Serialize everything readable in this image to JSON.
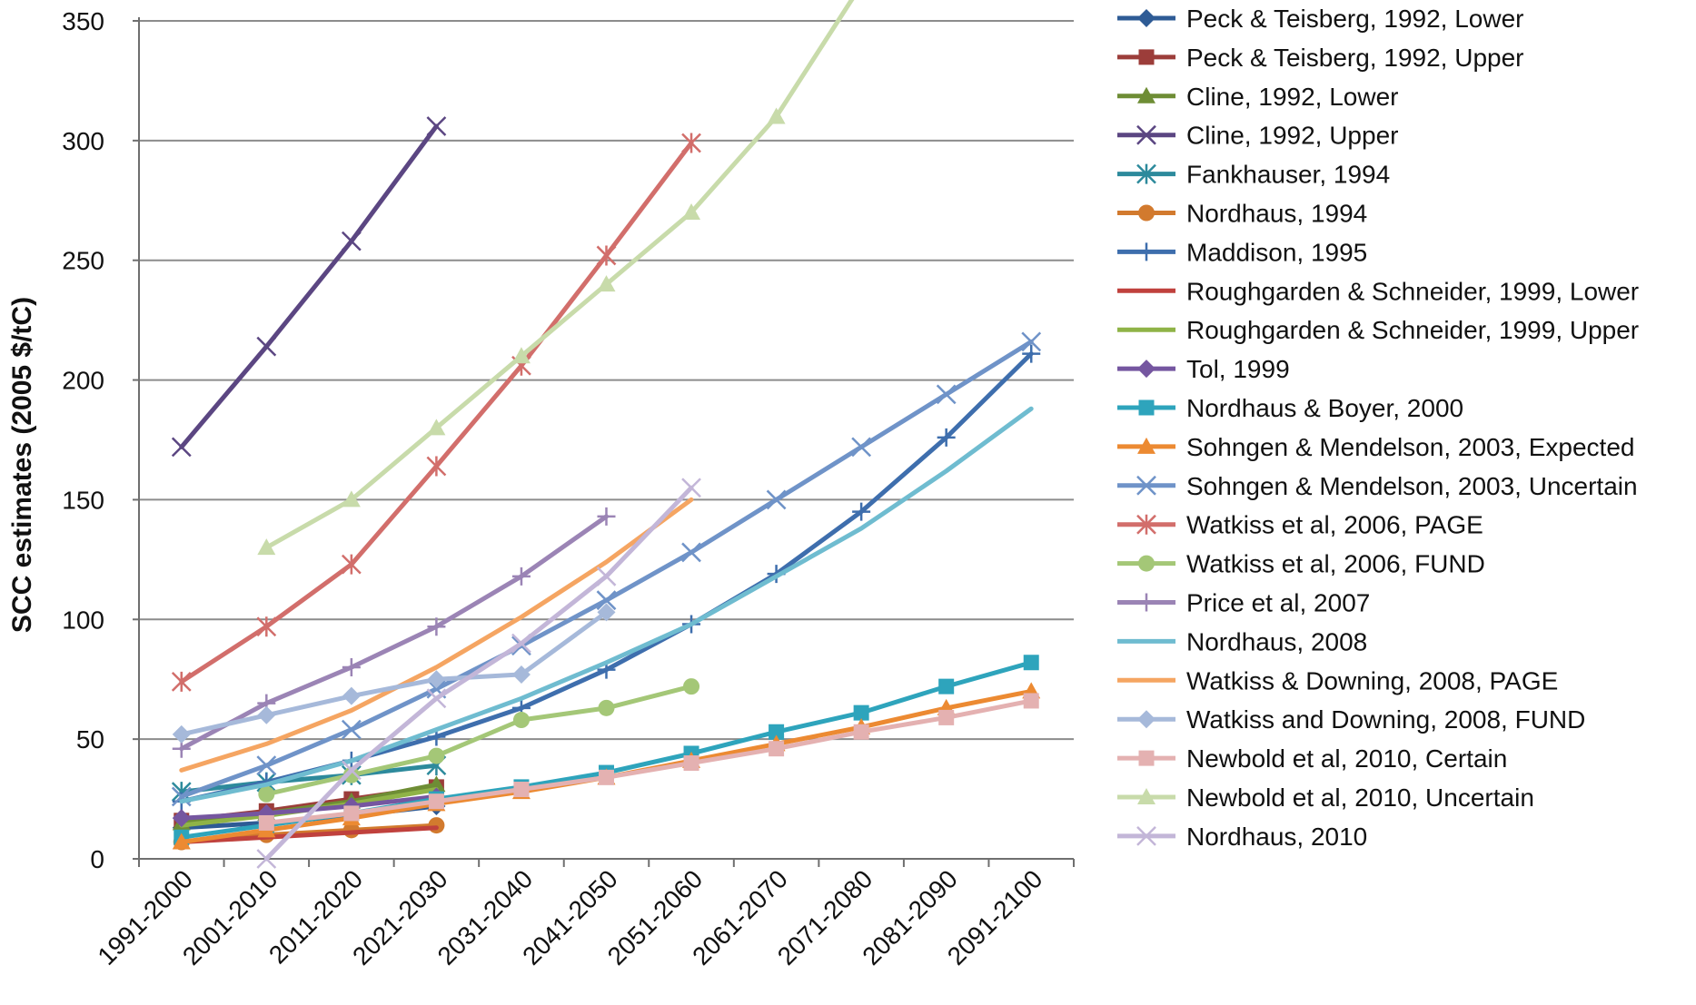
{
  "chart_data": {
    "type": "line",
    "title": "",
    "xlabel": "",
    "ylabel": "SCC estimates (2005 $/tC)",
    "ylim": [
      0,
      350
    ],
    "yticks": [
      0,
      50,
      100,
      150,
      200,
      250,
      300,
      350
    ],
    "grid": true,
    "legend_position": "right",
    "categories": [
      "1991-2000",
      "2001-2010",
      "2011-2020",
      "2021-2030",
      "2031-2040",
      "2041-2050",
      "2051-2060",
      "2061-2070",
      "2071-2080",
      "2081-2090",
      "2091-2100"
    ],
    "series": [
      {
        "name": "Peck & Teisberg, 1992, Lower",
        "color": "#2e5b95",
        "marker": "diamond",
        "values": [
          13,
          15,
          18,
          22,
          null,
          null,
          null,
          null,
          null,
          null,
          null
        ]
      },
      {
        "name": "Peck & Teisberg, 1992, Upper",
        "color": "#9c3d3a",
        "marker": "square",
        "values": [
          16,
          20,
          25,
          30,
          null,
          null,
          null,
          null,
          null,
          null,
          null
        ]
      },
      {
        "name": "Cline, 1992, Lower",
        "color": "#6e8d35",
        "marker": "triangle",
        "values": [
          15,
          19,
          24,
          31,
          null,
          null,
          null,
          null,
          null,
          null,
          null
        ]
      },
      {
        "name": "Cline, 1992, Upper",
        "color": "#5b4682",
        "marker": "x",
        "values": [
          172,
          214,
          258,
          306,
          null,
          null,
          null,
          null,
          null,
          null,
          null
        ]
      },
      {
        "name": "Fankhauser, 1994",
        "color": "#2d8a9c",
        "marker": "star",
        "values": [
          28,
          32,
          35,
          39,
          null,
          null,
          null,
          null,
          null,
          null,
          null
        ]
      },
      {
        "name": "Nordhaus, 1994",
        "color": "#d27a2e",
        "marker": "circle",
        "values": [
          7,
          10,
          12,
          14,
          null,
          null,
          null,
          null,
          null,
          null,
          null
        ]
      },
      {
        "name": "Maddison, 1995",
        "color": "#3e6ead",
        "marker": "plus",
        "values": [
          24,
          32,
          41,
          51,
          63,
          79,
          98,
          119,
          145,
          176,
          211
        ]
      },
      {
        "name": "Roughgarden & Schneider, 1999, Lower",
        "color": "#c0413d",
        "marker": "none",
        "values": [
          7,
          9,
          11,
          13,
          null,
          null,
          null,
          null,
          null,
          null,
          null
        ]
      },
      {
        "name": "Roughgarden & Schneider, 1999, Upper",
        "color": "#8fb347",
        "marker": "none",
        "values": [
          14,
          18,
          23,
          29,
          null,
          null,
          null,
          null,
          null,
          null,
          null
        ]
      },
      {
        "name": "Tol, 1999",
        "color": "#7556a0",
        "marker": "diamond",
        "values": [
          17,
          19,
          22,
          26,
          null,
          null,
          null,
          null,
          null,
          null,
          null
        ]
      },
      {
        "name": "Nordhaus & Boyer, 2000",
        "color": "#2ea4bc",
        "marker": "square",
        "values": [
          9,
          14,
          19,
          25,
          30,
          36,
          44,
          53,
          61,
          72,
          82
        ]
      },
      {
        "name": "Sohngen & Mendelson, 2003, Expected",
        "color": "#ec8a32",
        "marker": "triangle",
        "values": [
          7,
          12,
          17,
          23,
          28,
          34,
          41,
          48,
          55,
          63,
          70
        ]
      },
      {
        "name": "Sohngen & Mendelson, 2003, Uncertain",
        "color": "#6f93c8",
        "marker": "x",
        "values": [
          26,
          39,
          54,
          71,
          89,
          108,
          128,
          150,
          172,
          194,
          216
        ]
      },
      {
        "name": "Watkiss et al, 2006, PAGE",
        "color": "#d26e6b",
        "marker": "star",
        "values": [
          74,
          97,
          123,
          164,
          206,
          252,
          299,
          null,
          null,
          null,
          null
        ]
      },
      {
        "name": "Watkiss et al, 2006, FUND",
        "color": "#a4c777",
        "marker": "circle",
        "values": [
          null,
          27,
          35,
          43,
          58,
          63,
          72,
          null,
          null,
          null,
          null
        ]
      },
      {
        "name": "Price et al, 2007",
        "color": "#9b84b5",
        "marker": "plus",
        "values": [
          46,
          65,
          80,
          97,
          118,
          143,
          null,
          null,
          null,
          null,
          null
        ]
      },
      {
        "name": "Nordhaus, 2008",
        "color": "#6fbcd0",
        "marker": "none",
        "values": [
          24,
          31,
          41,
          54,
          67,
          82,
          98,
          118,
          138,
          162,
          188
        ]
      },
      {
        "name": "Watkiss & Downing,  2008, PAGE",
        "color": "#f5a562",
        "marker": "none",
        "values": [
          37,
          48,
          62,
          80,
          101,
          124,
          150,
          null,
          null,
          null,
          null
        ]
      },
      {
        "name": "Watkiss and  Downing, 2008, FUND",
        "color": "#a6b9da",
        "marker": "diamond",
        "values": [
          52,
          60,
          68,
          75,
          77,
          103,
          null,
          null,
          null,
          null,
          null
        ]
      },
      {
        "name": "Newbold et al, 2010, Certain",
        "color": "#e4b1b1",
        "marker": "square",
        "values": [
          null,
          15,
          19,
          24,
          29,
          34,
          40,
          46,
          53,
          59,
          66
        ]
      },
      {
        "name": "Newbold et al, 2010, Uncertain",
        "color": "#c8dbaa",
        "marker": "triangle",
        "values": [
          null,
          130,
          150,
          180,
          210,
          240,
          270,
          310,
          365,
          null,
          null
        ]
      },
      {
        "name": "Nordhaus, 2010",
        "color": "#c3b6d8",
        "marker": "x",
        "values": [
          null,
          0,
          37,
          67,
          90,
          118,
          155,
          null,
          null,
          null,
          null
        ]
      }
    ]
  }
}
